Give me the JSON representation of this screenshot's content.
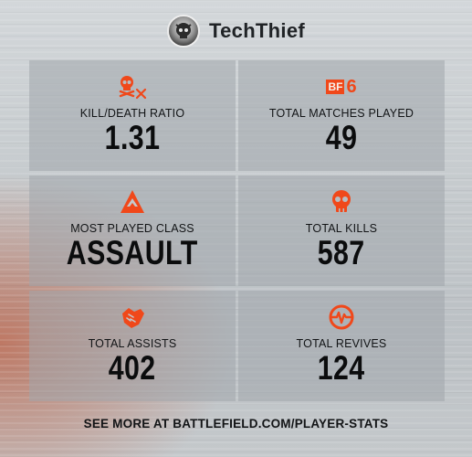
{
  "profile": {
    "username": "TechThief",
    "avatar_icon": "skull-helmet-avatar"
  },
  "accent_color": "#f0481a",
  "stats": [
    {
      "icon": "skull-crossed-icon",
      "label": "KILL/DEATH RATIO",
      "value": "1.31"
    },
    {
      "icon": "bf6-logo-icon",
      "label": "TOTAL MATCHES PLAYED",
      "value": "49",
      "badge_text": "BF",
      "badge_num": "6"
    },
    {
      "icon": "assault-class-icon",
      "label": "MOST PLAYED CLASS",
      "value": "ASSAULT"
    },
    {
      "icon": "skull-icon",
      "label": "TOTAL KILLS",
      "value": "587"
    },
    {
      "icon": "handshake-icon",
      "label": "TOTAL ASSISTS",
      "value": "402"
    },
    {
      "icon": "revive-heartbeat-icon",
      "label": "TOTAL REVIVES",
      "value": "124"
    }
  ],
  "footer": {
    "text": "SEE MORE AT BATTLEFIELD.COM/PLAYER-STATS"
  }
}
